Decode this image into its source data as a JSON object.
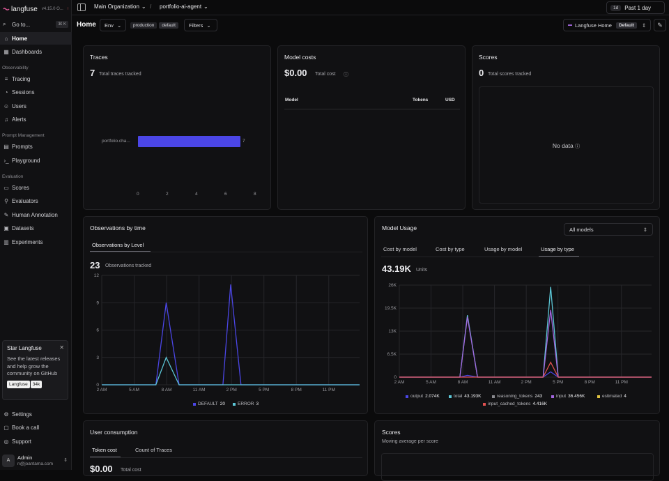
{
  "sidebar": {
    "brand": "langfuse",
    "version": "v4.15.0 O...",
    "update_indicator": "↑",
    "goto": "Go to...",
    "goto_kbd": "⌘ K",
    "home": "Home",
    "dashboards": "Dashboards",
    "observability_section": "Observability",
    "tracing": "Tracing",
    "sessions": "Sessions",
    "users": "Users",
    "alerts": "Alerts",
    "prompt_section": "Prompt Management",
    "prompts": "Prompts",
    "playground": "Playground",
    "evaluation_section": "Evaluation",
    "scores": "Scores",
    "evaluators": "Evaluators",
    "human_annotation": "Human Annotation",
    "datasets": "Datasets",
    "experiments": "Experiments",
    "settings": "Settings",
    "book_call": "Book a call",
    "support": "Support",
    "star_card": {
      "title": "Star Langfuse",
      "description": "See the latest releases and help grow the community on GitHub",
      "badge_label": "Langfuse",
      "badge_count": "34k"
    },
    "user": {
      "initial": "A",
      "name": "Admin",
      "email": "n@joantama.com"
    }
  },
  "topbar": {
    "org": "Main Organization",
    "project": "portfolio-ai-agent",
    "range_pill": "1d",
    "range_label": "Past 1 day"
  },
  "header": {
    "title": "Home",
    "env": "Env",
    "env_chip_1": "production",
    "env_chip_2": "default",
    "filters": "Filters",
    "dashboard_label": "Langfuse Home",
    "dashboard_value": "Default"
  },
  "traces": {
    "title": "Traces",
    "count": "7",
    "sub": "Total traces tracked",
    "bar_label": "portfolio.cha...",
    "bar_value": "7",
    "ticks": [
      "0",
      "2",
      "4",
      "6",
      "8"
    ]
  },
  "model_costs": {
    "title": "Model costs",
    "total": "$0.00",
    "sub": "Total cost",
    "col_model": "Model",
    "col_tokens": "Tokens",
    "col_usd": "USD"
  },
  "scores_card": {
    "title": "Scores",
    "count": "0",
    "sub": "Total scores tracked",
    "empty": "No data"
  },
  "observations": {
    "title": "Observations by time",
    "tab": "Observations by Level",
    "count": "23",
    "sub": "Observations tracked",
    "y_ticks": [
      "12",
      "9",
      "6",
      "3",
      "0"
    ],
    "x_ticks": [
      "2 AM",
      "5 AM",
      "8 AM",
      "11 AM",
      "2 PM",
      "5 PM",
      "8 PM",
      "11 PM"
    ],
    "legend": [
      {
        "name": "DEFAULT",
        "count": "20",
        "color": "#4b46e6"
      },
      {
        "name": "ERROR",
        "count": "3",
        "color": "#5cc6d6"
      }
    ]
  },
  "model_usage": {
    "title": "Model Usage",
    "select": "All models",
    "tabs": [
      "Cost by model",
      "Cost by type",
      "Usage by model",
      "Usage by type"
    ],
    "total": "43.19K",
    "unit": "Units",
    "y_ticks": [
      "26K",
      "19.5K",
      "13K",
      "6.5K",
      "0"
    ],
    "x_ticks": [
      "2 AM",
      "5 AM",
      "8 AM",
      "11 AM",
      "2 PM",
      "5 PM",
      "8 PM",
      "11 PM"
    ],
    "legend": [
      {
        "name": "output",
        "count": "2.074K",
        "color": "#4b46e6"
      },
      {
        "name": "total",
        "count": "43.193K",
        "color": "#5cc6d6"
      },
      {
        "name": "reasoning_tokens",
        "count": "243",
        "color": "#8a8a8f"
      },
      {
        "name": "input",
        "count": "36.456K",
        "color": "#a366e0"
      },
      {
        "name": "estimated",
        "count": "4",
        "color": "#e0c341"
      },
      {
        "name": "input_cached_tokens",
        "count": "4.416K",
        "color": "#e05050"
      }
    ]
  },
  "user_consumption": {
    "title": "User consumption",
    "tabs": [
      "Token cost",
      "Count of Traces"
    ],
    "value": "$0.00",
    "sub": "Total cost"
  },
  "scores_bottom": {
    "title": "Scores",
    "sub": "Moving average per score"
  },
  "chart_data": [
    {
      "type": "bar",
      "title": "Traces",
      "categories": [
        "portfolio.cha..."
      ],
      "values": [
        7
      ],
      "xlim": [
        0,
        8
      ]
    },
    {
      "type": "line",
      "title": "Observations by time",
      "x": [
        "2 AM",
        "5 AM",
        "8 AM",
        "11 AM",
        "2 PM",
        "5 PM",
        "8 PM",
        "11 PM"
      ],
      "ylim": [
        0,
        12
      ],
      "series": [
        {
          "name": "DEFAULT",
          "points": [
            [
              0,
              0
            ],
            [
              0.21,
              0
            ],
            [
              0.25,
              9
            ],
            [
              0.3,
              0
            ],
            [
              0.47,
              0
            ],
            [
              0.5,
              11
            ],
            [
              0.54,
              0
            ],
            [
              1,
              0
            ]
          ]
        },
        {
          "name": "ERROR",
          "points": [
            [
              0,
              0
            ],
            [
              0.21,
              0
            ],
            [
              0.25,
              3
            ],
            [
              0.3,
              0
            ],
            [
              1,
              0
            ]
          ]
        }
      ]
    },
    {
      "type": "line",
      "title": "Model Usage",
      "x": [
        "2 AM",
        "5 AM",
        "8 AM",
        "11 AM",
        "2 PM",
        "5 PM",
        "8 PM",
        "11 PM"
      ],
      "ylim": [
        0,
        26000
      ],
      "series": [
        {
          "name": "output",
          "points": [
            [
              0,
              0
            ],
            [
              0.24,
              0
            ],
            [
              0.27,
              500
            ],
            [
              0.31,
              0
            ],
            [
              0.57,
              0
            ],
            [
              0.6,
              1500
            ],
            [
              0.63,
              0
            ],
            [
              1,
              0
            ]
          ]
        },
        {
          "name": "total",
          "points": [
            [
              0,
              0
            ],
            [
              0.24,
              0
            ],
            [
              0.27,
              17500
            ],
            [
              0.31,
              0
            ],
            [
              0.57,
              0
            ],
            [
              0.6,
              25500
            ],
            [
              0.63,
              0
            ],
            [
              1,
              0
            ]
          ]
        },
        {
          "name": "input",
          "points": [
            [
              0,
              0
            ],
            [
              0.24,
              0
            ],
            [
              0.27,
              17000
            ],
            [
              0.31,
              0
            ],
            [
              0.57,
              0
            ],
            [
              0.6,
              19000
            ],
            [
              0.63,
              0
            ],
            [
              1,
              0
            ]
          ]
        },
        {
          "name": "input_cached_tokens",
          "points": [
            [
              0,
              0
            ],
            [
              0.57,
              0
            ],
            [
              0.6,
              4200
            ],
            [
              0.63,
              0
            ],
            [
              1,
              0
            ]
          ]
        }
      ]
    }
  ]
}
